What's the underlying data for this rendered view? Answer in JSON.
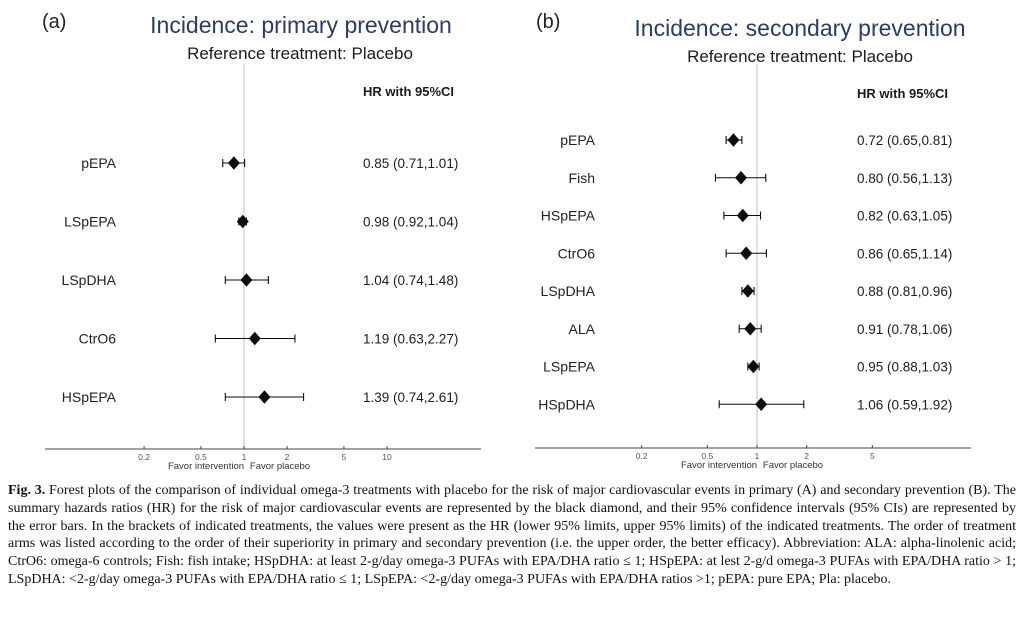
{
  "colors": {
    "title": "#2e3c63",
    "text": "#1a1a1a",
    "ref_line": "#d0d0d0",
    "axis": "#454545",
    "marker": "#0d0d0d"
  },
  "caption": {
    "label": "Fig. 3.",
    "text": " Forest plots of the comparison of individual omega-3 treatments with placebo for the risk of major cardiovascular events in primary (A) and secondary prevention (B). The summary hazards ratios (HR) for the risk of major cardiovascular events are represented by the black diamond, and their 95% confidence intervals (95% CIs) are represented by the error bars. In the brackets of indicated treatments, the values were present as the HR (lower 95% limits, upper 95% limits) of the indicated treatments. The order of treatment arms was listed according to the order of their superiority in primary and secondary prevention (i.e. the upper order, the better efficacy). Abbreviation: ALA: alpha-linolenic acid; CtrO6: omega-6 controls; Fish: fish intake; HSpDHA: at least 2-g/day omega-3 PUFAs with EPA/DHA ratio ≤ 1; HSpEPA: at lest 2-g/d omega-3 PUFAs with EPA/DHA ratio > 1; LSpDHA: <2-g/day omega-3 PUFAs with EPA/DHA ratio ≤ 1; LSpEPA: <2-g/day omega-3 PUFAs with EPA/DHA ratios >1; pEPA: pure EPA; Pla: placebo."
  },
  "chart_data": [
    {
      "type": "forest",
      "panel_label": "(a)",
      "title": "Incidence: primary prevention",
      "subtitle": "Reference treatment: Placebo",
      "column_header": "HR with 95%CI",
      "x_scale": "log",
      "xlim": [
        0.04,
        45
      ],
      "x_ticks": [
        0.2,
        0.5,
        1,
        2,
        5,
        10
      ],
      "reference_line": 1,
      "favor_left_label": "Favor intervention",
      "favor_right_label": "Favor placebo",
      "rows": [
        {
          "treatment": "pEPA",
          "hr": 0.85,
          "ci_low": 0.71,
          "ci_high": 1.01,
          "display": "0.85 (0.71,1.01)"
        },
        {
          "treatment": "LSpEPA",
          "hr": 0.98,
          "ci_low": 0.92,
          "ci_high": 1.04,
          "display": "0.98 (0.92,1.04)"
        },
        {
          "treatment": "LSpDHA",
          "hr": 1.04,
          "ci_low": 0.74,
          "ci_high": 1.48,
          "display": "1.04 (0.74,1.48)"
        },
        {
          "treatment": "CtrO6",
          "hr": 1.19,
          "ci_low": 0.63,
          "ci_high": 2.27,
          "display": "1.19 (0.63,2.27)"
        },
        {
          "treatment": "HSpEPA",
          "hr": 1.39,
          "ci_low": 0.74,
          "ci_high": 2.61,
          "display": "1.39 (0.74,2.61)"
        }
      ]
    },
    {
      "type": "forest",
      "panel_label": "(b)",
      "title": "Incidence: secondary prevention",
      "subtitle": "Reference treatment: Placebo",
      "column_header": "HR with 95%CI",
      "x_scale": "log",
      "xlim": [
        0.045,
        20
      ],
      "x_ticks": [
        0.2,
        0.5,
        1,
        2,
        5
      ],
      "reference_line": 1,
      "favor_left_label": "Favor intervention",
      "favor_right_label": "Favor placebo",
      "rows": [
        {
          "treatment": "pEPA",
          "hr": 0.72,
          "ci_low": 0.65,
          "ci_high": 0.81,
          "display": "0.72 (0.65,0.81)"
        },
        {
          "treatment": "Fish",
          "hr": 0.8,
          "ci_low": 0.56,
          "ci_high": 1.13,
          "display": "0.80 (0.56,1.13)"
        },
        {
          "treatment": "HSpEPA",
          "hr": 0.82,
          "ci_low": 0.63,
          "ci_high": 1.05,
          "display": "0.82 (0.63,1.05)"
        },
        {
          "treatment": "CtrO6",
          "hr": 0.86,
          "ci_low": 0.65,
          "ci_high": 1.14,
          "display": "0.86 (0.65,1.14)"
        },
        {
          "treatment": "LSpDHA",
          "hr": 0.88,
          "ci_low": 0.81,
          "ci_high": 0.96,
          "display": "0.88 (0.81,0.96)"
        },
        {
          "treatment": "ALA",
          "hr": 0.91,
          "ci_low": 0.78,
          "ci_high": 1.06,
          "display": "0.91 (0.78,1.06)"
        },
        {
          "treatment": "LSpEPA",
          "hr": 0.95,
          "ci_low": 0.88,
          "ci_high": 1.03,
          "display": "0.95 (0.88,1.03)"
        },
        {
          "treatment": "HSpDHA",
          "hr": 1.06,
          "ci_low": 0.59,
          "ci_high": 1.92,
          "display": "1.06 (0.59,1.92)"
        }
      ]
    }
  ]
}
